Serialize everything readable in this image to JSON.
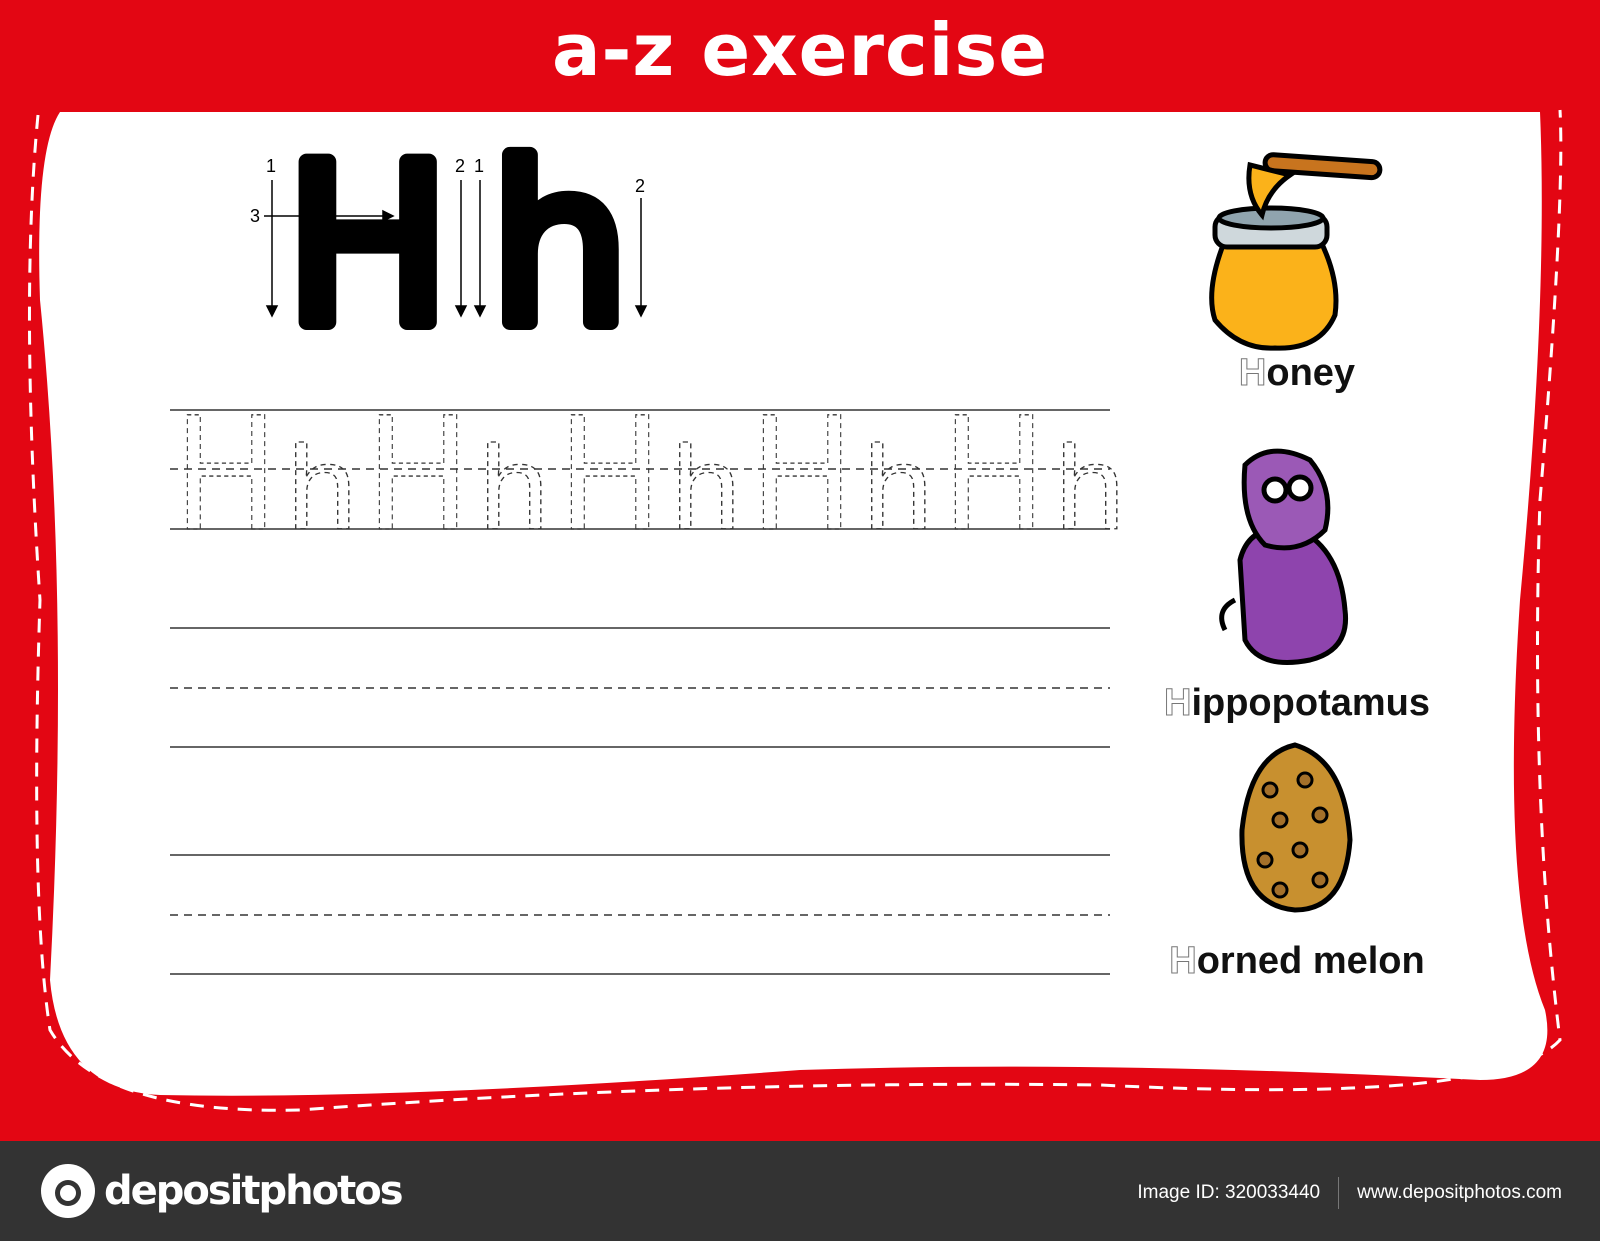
{
  "header": {
    "title": "a-z exercise"
  },
  "letter": {
    "upper": "H",
    "lower": "h",
    "stroke_numbers": [
      "1",
      "2",
      "3",
      "1",
      "2"
    ]
  },
  "trace": {
    "pairs": [
      "H",
      "h",
      "H",
      "h",
      "H",
      "h",
      "H",
      "h",
      "H",
      "h"
    ]
  },
  "words": [
    {
      "first": "H",
      "rest": "oney",
      "picture": "honey-jar"
    },
    {
      "first": "H",
      "rest": "ippopotamus",
      "picture": "hippopotamus"
    },
    {
      "first": "H",
      "rest": "orned melon",
      "picture": "horned-melon"
    }
  ],
  "colors": {
    "frame": "#e30613",
    "footer": "#333333"
  },
  "footer": {
    "logo": "depositphotos",
    "image_id": "Image ID: 320033440",
    "url": "www.depositphotos.com"
  }
}
